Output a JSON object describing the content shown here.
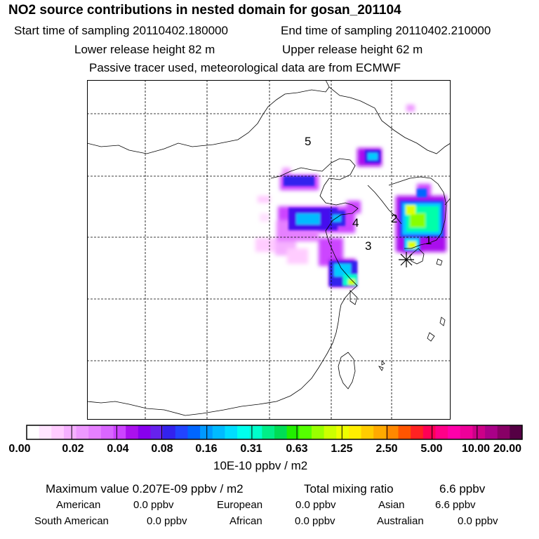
{
  "header": {
    "title": "NO2 source contributions in nested domain for gosan_201104",
    "start_time": "Start time of sampling 20110402.180000",
    "end_time": "End time of sampling 20110402.210000",
    "lower_height": "Lower release height   82 m",
    "upper_height": "Upper release height   62 m",
    "note": "Passive tracer used, meteorological data are from ECMWF"
  },
  "map": {
    "region_labels": [
      "5",
      "4",
      "2",
      "3",
      "1"
    ],
    "receptor_icon": "asterisk-icon"
  },
  "colorbar": {
    "tick_labels": [
      "0.00",
      "0.02",
      "0.04",
      "0.08",
      "0.16",
      "0.31",
      "0.63",
      "1.25",
      "2.50",
      "5.00",
      "10.00",
      "20.00"
    ],
    "colors": [
      "#ffffff",
      "#ffe5ff",
      "#ffccff",
      "#f5b0ff",
      "#ee99ff",
      "#e680ff",
      "#d966ff",
      "#cc44ff",
      "#aa11ee",
      "#8800ee",
      "#6622ee",
      "#3322ee",
      "#2244ff",
      "#0066ff",
      "#0099ff",
      "#00bbff",
      "#00ddff",
      "#00ffee",
      "#00ffcc",
      "#00ee88",
      "#00dd55",
      "#22ee00",
      "#55ff00",
      "#99ff00",
      "#ccff00",
      "#eeff00",
      "#ffee00",
      "#ffcc00",
      "#ffaa00",
      "#ff8800",
      "#ff5500",
      "#ff2222",
      "#ff0055",
      "#ff0088",
      "#ff00aa",
      "#ee0099",
      "#cc0088",
      "#aa0088",
      "#880066",
      "#550044"
    ],
    "units": "10E-10 ppbv / m2"
  },
  "stats": {
    "maximum": "Maximum value  0.207E-09 ppbv / m2",
    "total_label": "Total mixing ratio",
    "total_value": "6.6 ppbv",
    "regions": [
      {
        "name": "American",
        "value": "0.0 ppbv"
      },
      {
        "name": "European",
        "value": "0.0 ppbv"
      },
      {
        "name": "Asian",
        "value": "6.6 ppbv"
      },
      {
        "name": "South American",
        "value": "0.0 ppbv"
      },
      {
        "name": "African",
        "value": "0.0 ppbv"
      },
      {
        "name": "Australian",
        "value": "0.0 ppbv"
      }
    ]
  }
}
